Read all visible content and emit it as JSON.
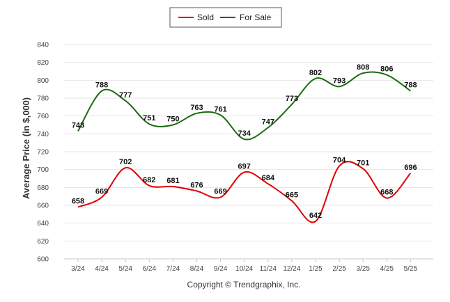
{
  "chart_data": {
    "type": "line",
    "ylabel": "Average Price (in $,000)",
    "ylim": [
      600,
      840
    ],
    "yticks": [
      600,
      620,
      640,
      660,
      680,
      700,
      720,
      740,
      760,
      780,
      800,
      820,
      840
    ],
    "categories": [
      "3/24",
      "4/24",
      "5/24",
      "6/24",
      "7/24",
      "8/24",
      "9/24",
      "10/24",
      "11/24",
      "12/24",
      "1/25",
      "2/25",
      "3/25",
      "4/25",
      "5/25"
    ],
    "series": [
      {
        "name": "Sold",
        "color": "#e00000",
        "values": [
          658,
          669,
          702,
          682,
          681,
          676,
          669,
          697,
          684,
          665,
          642,
          704,
          701,
          668,
          696
        ]
      },
      {
        "name": "For Sale",
        "color": "#1a6a0f",
        "values": [
          743,
          788,
          777,
          751,
          750,
          763,
          761,
          734,
          747,
          773,
          802,
          793,
          808,
          806,
          788
        ]
      }
    ],
    "legend_position": "top-center",
    "grid": true,
    "footer": "Copyright © Trendgraphix, Inc."
  }
}
